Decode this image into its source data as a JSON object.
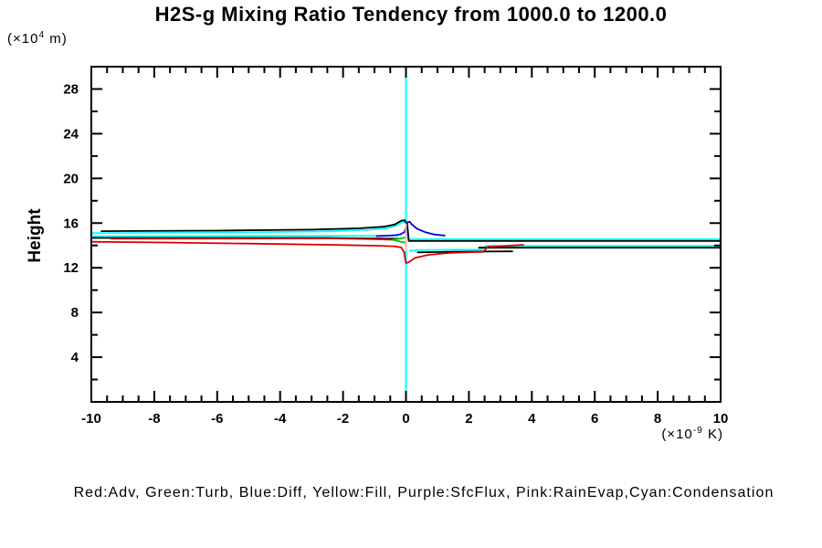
{
  "title": "H2S-g Mixing Ratio Tendency from 1000.0 to 1200.0",
  "y_axis_title": "Height",
  "y_axis_unit": {
    "prefix": "(×10",
    "exp": "4",
    "suffix": " m)"
  },
  "x_axis_unit": {
    "prefix": "(×10",
    "exp": "-9",
    "suffix": " K)"
  },
  "legend_text": "Red:Adv, Green:Turb, Blue:Diff, Yellow:Fill, Purple:SfcFlux, Pink:RainEvap,Cyan:Condensation",
  "colors": {
    "red": "#d40000",
    "green": "#00c800",
    "blue": "#0000dc",
    "cyan": "#00ffff",
    "pink": "#ffb0b0",
    "black": "#000000",
    "background": "#ffffff"
  },
  "chart_data": {
    "type": "line",
    "title": "H2S-g Mixing Ratio Tendency from 1000.0 to 1200.0",
    "xlabel": "(×10^-9 K)",
    "ylabel": "Height (×10^4 m)",
    "xlim": [
      -10,
      10
    ],
    "ylim": [
      0,
      30
    ],
    "grid": false,
    "x_major_ticks": [
      -10,
      -8,
      -6,
      -4,
      -2,
      0,
      2,
      4,
      6,
      8,
      10
    ],
    "x_minor_step": 0.5,
    "y_major_ticks": [
      4,
      8,
      12,
      16,
      20,
      24,
      28
    ],
    "y_minor_step": 2,
    "legend_position": "bottom",
    "legend_mapping": {
      "Red": "Adv",
      "Green": "Turb",
      "Blue": "Diff",
      "Yellow": "Fill",
      "Purple": "SfcFlux",
      "Pink": "RainEvap",
      "Cyan": "Condensation"
    },
    "series": [
      {
        "name": "condensation-zero-line",
        "color": "#00ffff",
        "width": 2,
        "points": [
          [
            0,
            0
          ],
          [
            0,
            30
          ]
        ]
      },
      {
        "name": "condensation-upper",
        "color": "#00ffff",
        "width": 1.8,
        "points": [
          [
            -10,
            15.1
          ],
          [
            -5,
            15.17
          ],
          [
            -2.5,
            15.27
          ],
          [
            -1.2,
            15.4
          ],
          [
            -0.6,
            15.55
          ],
          [
            -0.3,
            15.78
          ],
          [
            -0.12,
            16.08
          ],
          [
            -0.03,
            16.1
          ],
          [
            0.03,
            15.7
          ],
          [
            0.07,
            14.56
          ],
          [
            10,
            14.56
          ]
        ]
      },
      {
        "name": "condensation-left-band",
        "color": "#00ffff",
        "width": 1.8,
        "points": [
          [
            -10,
            14.82
          ],
          [
            -3,
            14.85
          ],
          [
            -0.6,
            14.88
          ],
          [
            -0.25,
            14.9
          ]
        ]
      },
      {
        "name": "condensation-lower-right",
        "color": "#00ffff",
        "width": 1.8,
        "points": [
          [
            0.1,
            13.52
          ],
          [
            0.5,
            13.6
          ],
          [
            2.4,
            13.63
          ],
          [
            2.55,
            13.95
          ],
          [
            10,
            13.95
          ]
        ]
      },
      {
        "name": "net-upper-black",
        "color": "#000000",
        "width": 1.8,
        "points": [
          [
            -9.7,
            15.28
          ],
          [
            -6,
            15.33
          ],
          [
            -3,
            15.42
          ],
          [
            -1.5,
            15.53
          ],
          [
            -0.7,
            15.68
          ],
          [
            -0.35,
            15.88
          ],
          [
            -0.15,
            16.22
          ],
          [
            -0.04,
            16.25
          ],
          [
            0.04,
            15.9
          ],
          [
            0.09,
            14.4
          ],
          [
            10,
            14.4
          ]
        ]
      },
      {
        "name": "net-mid-left-black",
        "color": "#000000",
        "width": 1.8,
        "points": [
          [
            -10,
            14.67
          ],
          [
            -2.5,
            14.67
          ],
          [
            -0.8,
            14.62
          ],
          [
            -0.2,
            14.6
          ]
        ]
      },
      {
        "name": "net-lower-right-black",
        "color": "#000000",
        "width": 1.8,
        "points": [
          [
            2.3,
            13.8
          ],
          [
            10,
            13.8
          ]
        ]
      },
      {
        "name": "net-lower-mid-black",
        "color": "#000000",
        "width": 1.8,
        "points": [
          [
            0.35,
            13.38
          ],
          [
            1.5,
            13.44
          ],
          [
            3.4,
            13.47
          ]
        ]
      },
      {
        "name": "adv-upper-red",
        "color": "#d40000",
        "width": 1.8,
        "points": [
          [
            -9.4,
            14.6
          ],
          [
            -2.4,
            14.63
          ],
          [
            -1.0,
            14.57
          ],
          [
            -0.3,
            14.5
          ]
        ]
      },
      {
        "name": "adv-main-red",
        "color": "#d40000",
        "width": 1.8,
        "points": [
          [
            -10,
            14.33
          ],
          [
            -8,
            14.27
          ],
          [
            -5,
            14.17
          ],
          [
            -2.5,
            14.06
          ],
          [
            -1,
            13.98
          ],
          [
            -0.4,
            13.93
          ],
          [
            -0.15,
            13.82
          ],
          [
            -0.06,
            13.4
          ],
          [
            0.0,
            12.42
          ],
          [
            0.08,
            12.5
          ],
          [
            0.3,
            12.9
          ],
          [
            0.7,
            13.15
          ],
          [
            1.3,
            13.32
          ],
          [
            2.0,
            13.4
          ],
          [
            2.45,
            13.43
          ],
          [
            2.6,
            13.88
          ],
          [
            3.2,
            13.97
          ],
          [
            3.75,
            14.06
          ]
        ]
      },
      {
        "name": "diff-blue",
        "color": "#0000dc",
        "width": 1.8,
        "points": [
          [
            -0.95,
            14.84
          ],
          [
            -0.55,
            14.88
          ],
          [
            -0.3,
            14.93
          ],
          [
            -0.15,
            15.02
          ],
          [
            -0.05,
            15.2
          ],
          [
            0.0,
            15.6
          ],
          [
            0.06,
            16.1
          ],
          [
            0.12,
            16.12
          ],
          [
            0.18,
            15.9
          ],
          [
            0.35,
            15.5
          ],
          [
            0.6,
            15.2
          ],
          [
            0.9,
            14.98
          ],
          [
            1.25,
            14.88
          ]
        ]
      },
      {
        "name": "turb-green",
        "color": "#00c800",
        "width": 1.8,
        "points": [
          [
            0,
            14.72
          ],
          [
            -0.2,
            14.6
          ],
          [
            -0.42,
            14.5
          ],
          [
            -0.28,
            14.4
          ],
          [
            -0.1,
            14.3
          ],
          [
            0,
            14.22
          ]
        ]
      },
      {
        "name": "rainevap-zero-segment-pink",
        "color": "#ffb0b0",
        "width": 2,
        "points": [
          [
            0,
            15.95
          ],
          [
            0,
            13.55
          ]
        ]
      }
    ]
  }
}
